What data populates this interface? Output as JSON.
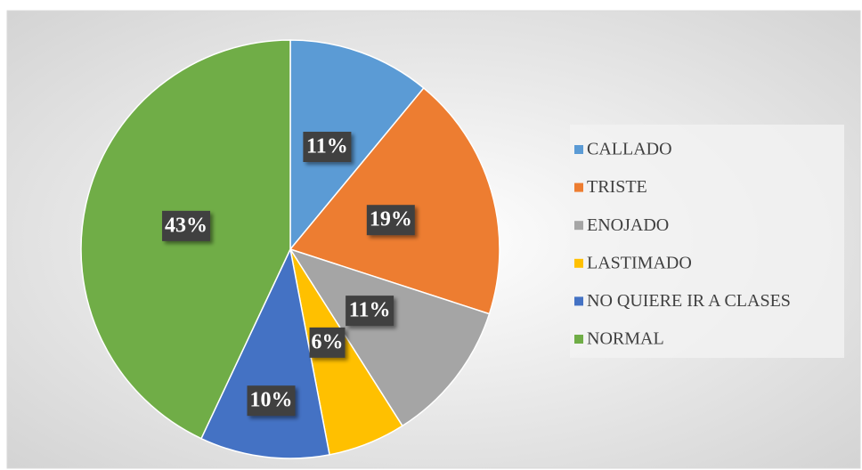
{
  "chart_data": {
    "type": "pie",
    "categories": [
      "CALLADO",
      "TRISTE",
      "ENOJADO",
      "LASTIMADO",
      "NO QUIERE IR A CLASES",
      "NORMAL"
    ],
    "values": [
      11,
      19,
      11,
      6,
      10,
      43
    ],
    "value_labels": [
      "11%",
      "19%",
      "11%",
      "6%",
      "10%",
      "43%"
    ],
    "colors": [
      "#5b9bd5",
      "#ed7d31",
      "#a5a5a5",
      "#ffc000",
      "#4472c4",
      "#70ad47"
    ],
    "legend": "right"
  }
}
